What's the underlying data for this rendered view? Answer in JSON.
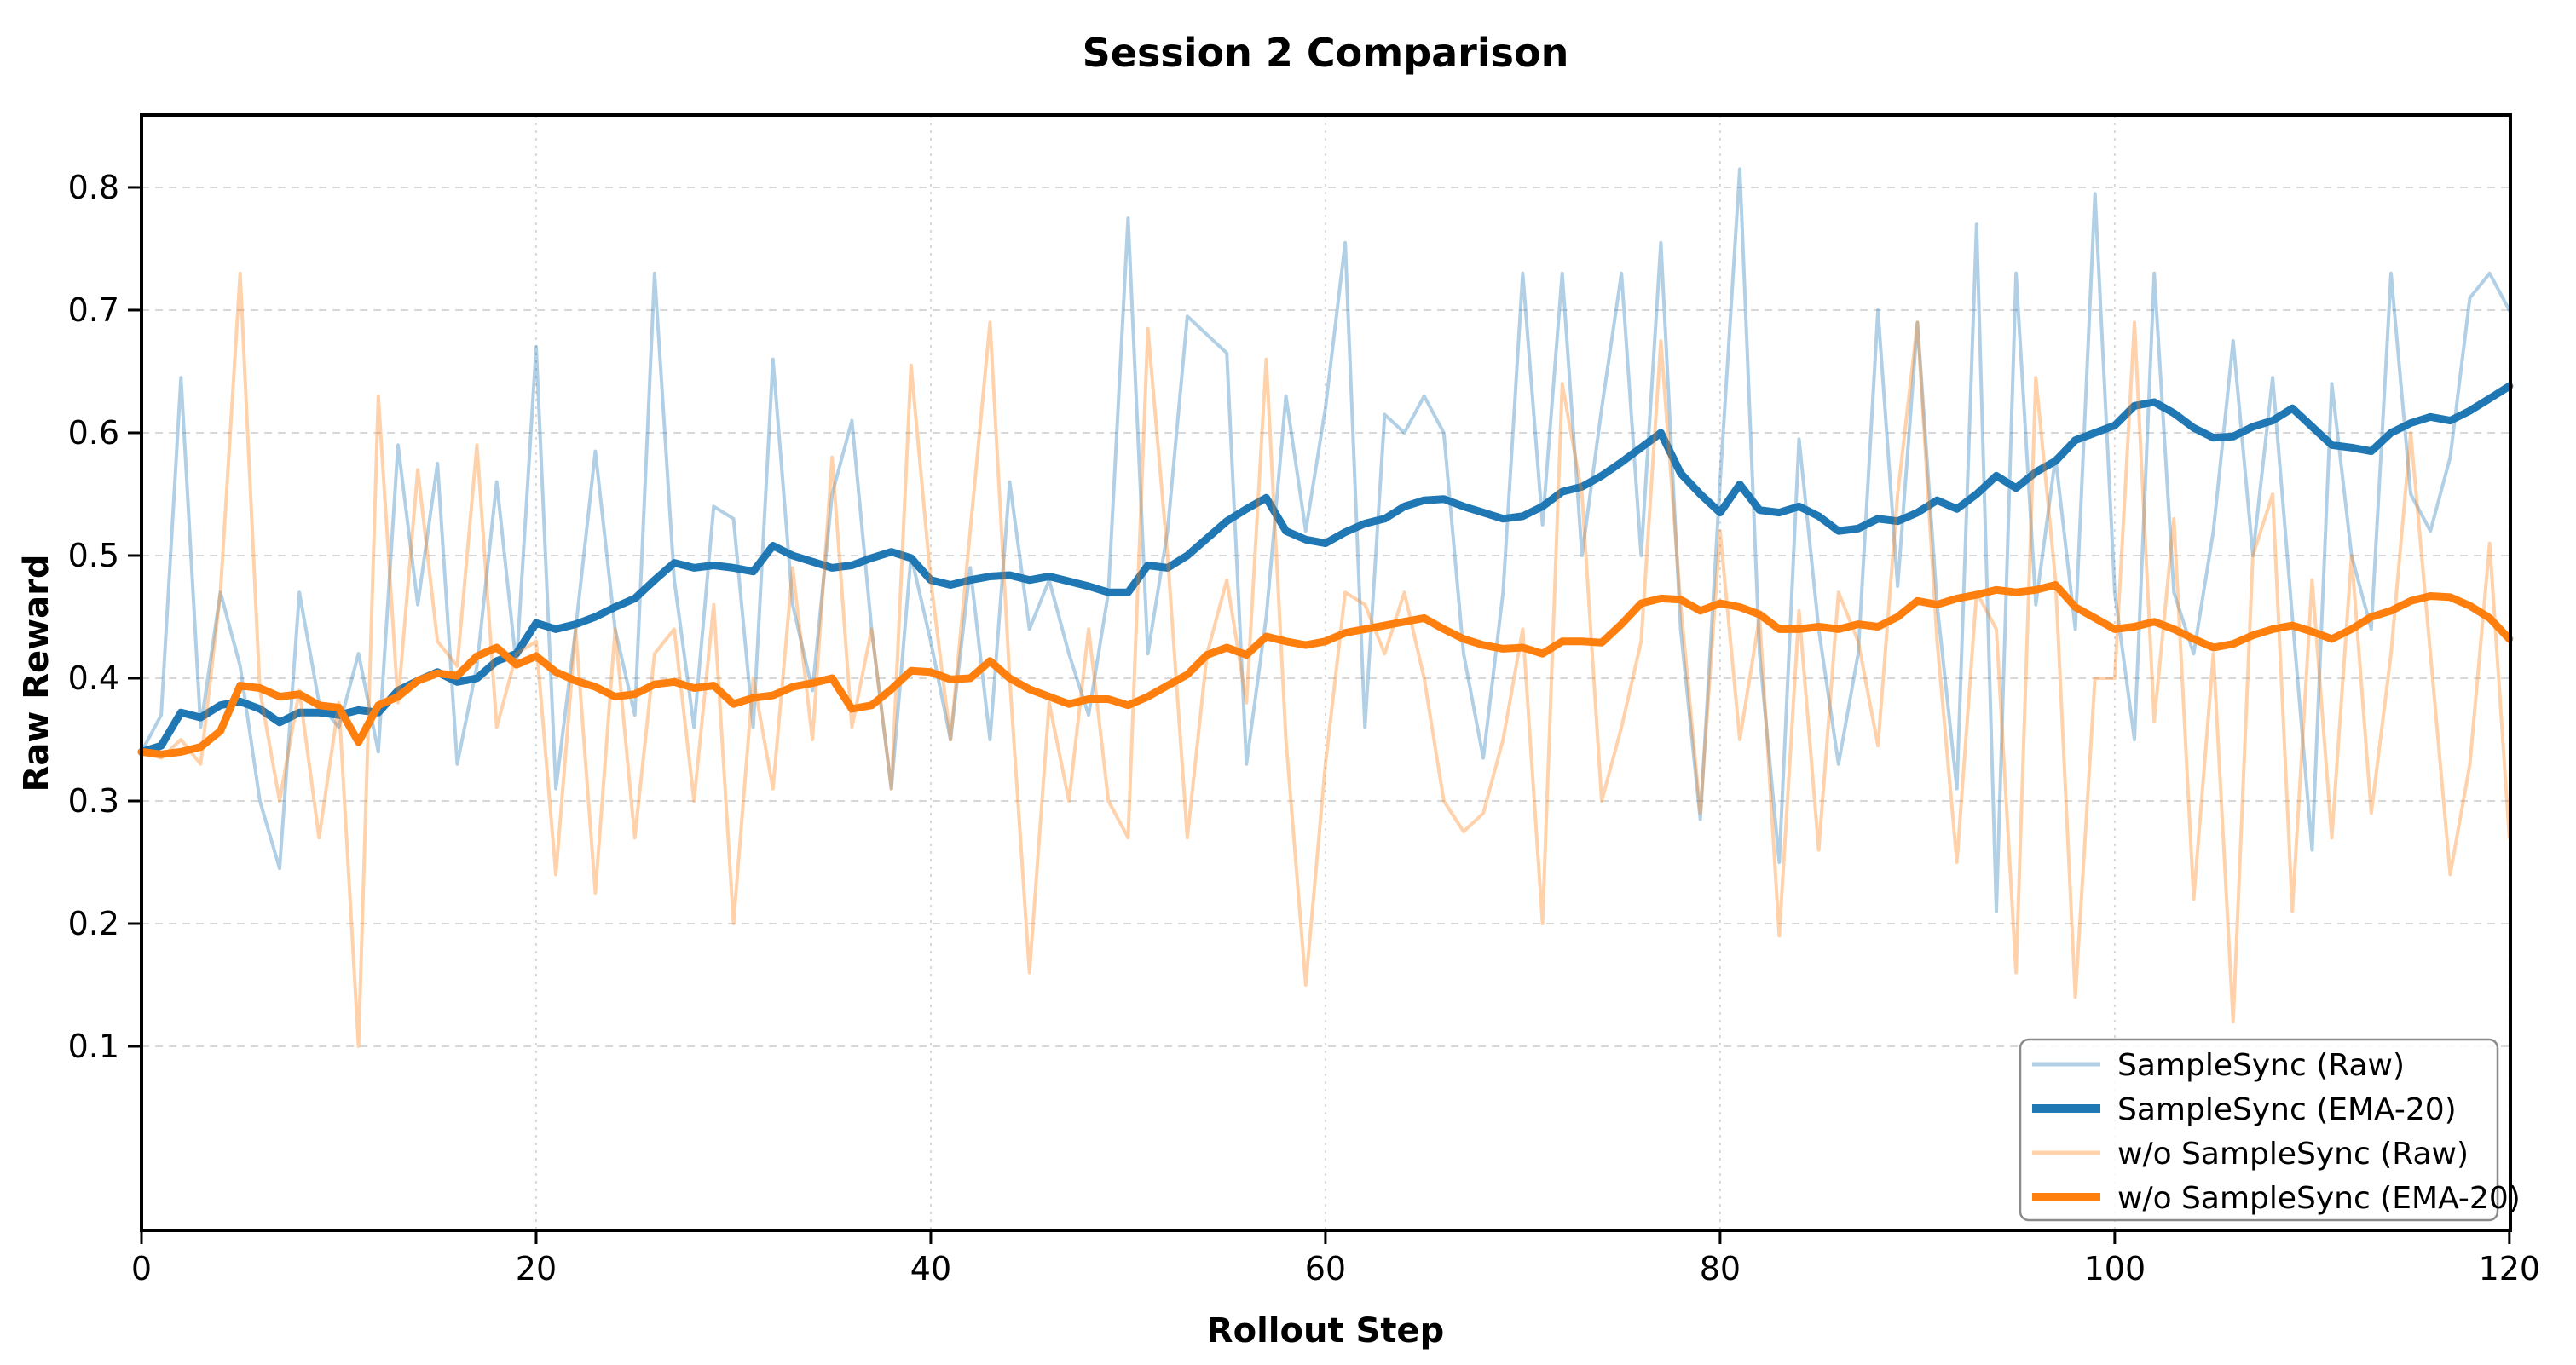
{
  "chart_data": {
    "type": "line",
    "title": "Session 2 Comparison",
    "xlabel": "Rollout Step",
    "ylabel": "Raw Reward",
    "xlim": [
      0,
      120.05
    ],
    "ylim": [
      -0.05,
      0.859
    ],
    "xticks": [
      0,
      20,
      40,
      60,
      80,
      100,
      120
    ],
    "yticks": [
      0.1,
      0.2,
      0.3,
      0.4,
      0.5,
      0.6,
      0.7,
      0.8
    ],
    "grid": true,
    "background_color": "#ffffff",
    "grid_color": "#d8d8d8",
    "spine_color": "#000000",
    "legend": {
      "visible": true,
      "location": "lower right"
    },
    "x": {
      "start": 0,
      "step": 1,
      "count": 121
    },
    "series": [
      {
        "name": "SampleSync (Raw)",
        "color": "#1f77b4",
        "alpha": 0.35,
        "width": 4,
        "values": [
          0.34,
          0.37,
          0.645,
          0.36,
          0.47,
          0.41,
          0.3,
          0.245,
          0.47,
          0.38,
          0.36,
          0.42,
          0.34,
          0.59,
          0.46,
          0.575,
          0.33,
          0.41,
          0.56,
          0.41,
          0.67,
          0.31,
          0.44,
          0.585,
          0.44,
          0.37,
          0.73,
          0.48,
          0.36,
          0.54,
          0.53,
          0.36,
          0.66,
          0.46,
          0.39,
          0.55,
          0.61,
          0.44,
          0.31,
          0.5,
          0.43,
          0.35,
          0.49,
          0.35,
          0.56,
          0.44,
          0.48,
          0.42,
          0.37,
          0.47,
          0.775,
          0.42,
          0.52,
          0.695,
          0.68,
          0.665,
          0.33,
          0.45,
          0.63,
          0.52,
          0.62,
          0.755,
          0.36,
          0.615,
          0.6,
          0.63,
          0.6,
          0.42,
          0.335,
          0.47,
          0.73,
          0.525,
          0.73,
          0.5,
          0.62,
          0.73,
          0.5,
          0.755,
          0.44,
          0.285,
          0.56,
          0.815,
          0.42,
          0.25,
          0.595,
          0.44,
          0.33,
          0.42,
          0.7,
          0.475,
          0.69,
          0.46,
          0.31,
          0.77,
          0.21,
          0.73,
          0.46,
          0.58,
          0.44,
          0.795,
          0.47,
          0.35,
          0.73,
          0.47,
          0.42,
          0.52,
          0.675,
          0.5,
          0.645,
          0.45,
          0.26,
          0.64,
          0.5,
          0.44,
          0.73,
          0.55,
          0.52,
          0.58,
          0.71,
          0.73,
          0.7
        ]
      },
      {
        "name": "SampleSync (EMA-20)",
        "color": "#1f77b4",
        "alpha": 1,
        "width": 9,
        "values": [
          0.34,
          0.345,
          0.372,
          0.368,
          0.378,
          0.381,
          0.375,
          0.364,
          0.372,
          0.372,
          0.37,
          0.374,
          0.372,
          0.39,
          0.398,
          0.405,
          0.397,
          0.4,
          0.414,
          0.42,
          0.445,
          0.44,
          0.444,
          0.45,
          0.458,
          0.465,
          0.48,
          0.494,
          0.49,
          0.492,
          0.49,
          0.487,
          0.508,
          0.5,
          0.495,
          0.49,
          0.492,
          0.498,
          0.503,
          0.498,
          0.48,
          0.476,
          0.48,
          0.483,
          0.484,
          0.48,
          0.483,
          0.479,
          0.475,
          0.47,
          0.47,
          0.492,
          0.49,
          0.5,
          0.514,
          0.528,
          0.538,
          0.547,
          0.52,
          0.513,
          0.51,
          0.519,
          0.526,
          0.53,
          0.54,
          0.545,
          0.546,
          0.54,
          0.535,
          0.53,
          0.532,
          0.54,
          0.552,
          0.556,
          0.565,
          0.576,
          0.588,
          0.6,
          0.567,
          0.55,
          0.535,
          0.558,
          0.537,
          0.535,
          0.54,
          0.532,
          0.52,
          0.522,
          0.53,
          0.528,
          0.535,
          0.545,
          0.538,
          0.55,
          0.565,
          0.555,
          0.568,
          0.577,
          0.594,
          0.6,
          0.606,
          0.622,
          0.625,
          0.616,
          0.604,
          0.596,
          0.597,
          0.605,
          0.61,
          0.62,
          0.605,
          0.59,
          0.588,
          0.585,
          0.6,
          0.608,
          0.613,
          0.61,
          0.618,
          0.628,
          0.638
        ]
      },
      {
        "name": "w/o SampleSync (Raw)",
        "color": "#ff7f0e",
        "alpha": 0.35,
        "width": 4,
        "values": [
          0.34,
          0.335,
          0.35,
          0.33,
          0.47,
          0.73,
          0.39,
          0.3,
          0.39,
          0.27,
          0.38,
          0.1,
          0.63,
          0.38,
          0.57,
          0.43,
          0.41,
          0.59,
          0.36,
          0.42,
          0.43,
          0.24,
          0.44,
          0.225,
          0.44,
          0.27,
          0.42,
          0.44,
          0.3,
          0.46,
          0.2,
          0.4,
          0.31,
          0.49,
          0.35,
          0.58,
          0.36,
          0.44,
          0.31,
          0.655,
          0.48,
          0.35,
          0.52,
          0.69,
          0.4,
          0.16,
          0.38,
          0.3,
          0.44,
          0.3,
          0.27,
          0.685,
          0.5,
          0.27,
          0.42,
          0.48,
          0.38,
          0.66,
          0.35,
          0.15,
          0.33,
          0.47,
          0.46,
          0.42,
          0.47,
          0.4,
          0.3,
          0.275,
          0.29,
          0.35,
          0.44,
          0.2,
          0.64,
          0.55,
          0.3,
          0.36,
          0.43,
          0.675,
          0.46,
          0.29,
          0.52,
          0.35,
          0.45,
          0.19,
          0.455,
          0.26,
          0.47,
          0.43,
          0.345,
          0.55,
          0.69,
          0.43,
          0.25,
          0.47,
          0.44,
          0.16,
          0.645,
          0.48,
          0.14,
          0.4,
          0.4,
          0.69,
          0.365,
          0.53,
          0.22,
          0.42,
          0.12,
          0.5,
          0.55,
          0.21,
          0.48,
          0.27,
          0.5,
          0.29,
          0.42,
          0.6,
          0.42,
          0.24,
          0.33,
          0.51,
          0.27
        ]
      },
      {
        "name": "w/o SampleSync (EMA-20)",
        "color": "#ff7f0e",
        "alpha": 1,
        "width": 9,
        "values": [
          0.34,
          0.338,
          0.34,
          0.344,
          0.357,
          0.394,
          0.392,
          0.385,
          0.387,
          0.378,
          0.376,
          0.348,
          0.378,
          0.385,
          0.398,
          0.404,
          0.402,
          0.418,
          0.425,
          0.411,
          0.418,
          0.405,
          0.398,
          0.393,
          0.385,
          0.387,
          0.395,
          0.397,
          0.392,
          0.394,
          0.379,
          0.384,
          0.386,
          0.393,
          0.396,
          0.4,
          0.375,
          0.378,
          0.391,
          0.406,
          0.405,
          0.399,
          0.4,
          0.414,
          0.4,
          0.391,
          0.385,
          0.379,
          0.383,
          0.383,
          0.378,
          0.385,
          0.394,
          0.403,
          0.419,
          0.425,
          0.419,
          0.434,
          0.43,
          0.427,
          0.43,
          0.437,
          0.44,
          0.443,
          0.446,
          0.449,
          0.44,
          0.432,
          0.427,
          0.424,
          0.425,
          0.42,
          0.43,
          0.43,
          0.429,
          0.444,
          0.461,
          0.465,
          0.464,
          0.455,
          0.461,
          0.458,
          0.452,
          0.44,
          0.44,
          0.442,
          0.44,
          0.444,
          0.442,
          0.45,
          0.463,
          0.46,
          0.465,
          0.468,
          0.472,
          0.47,
          0.472,
          0.476,
          0.458,
          0.449,
          0.44,
          0.442,
          0.446,
          0.44,
          0.432,
          0.425,
          0.428,
          0.435,
          0.44,
          0.443,
          0.438,
          0.432,
          0.44,
          0.45,
          0.455,
          0.463,
          0.467,
          0.466,
          0.459,
          0.449,
          0.432
        ]
      }
    ]
  }
}
